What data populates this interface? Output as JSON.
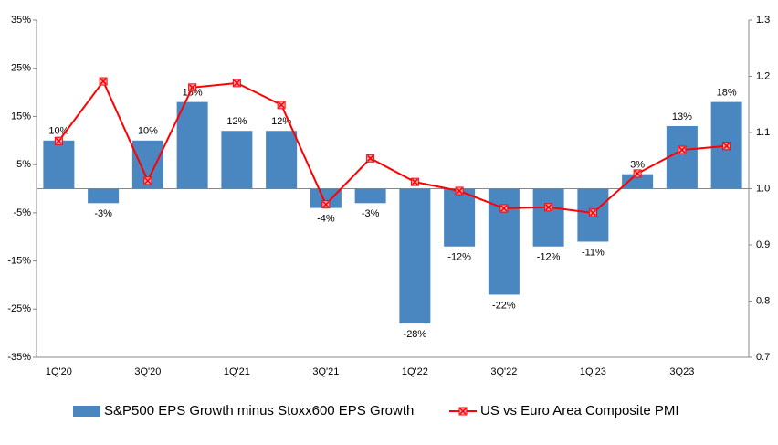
{
  "chart_data": {
    "type": "bar-line",
    "categories": [
      "1Q'20",
      null,
      "3Q'20",
      null,
      "1Q'21",
      null,
      "3Q'21",
      null,
      "1Q'22",
      null,
      "3Q'22",
      null,
      "1Q'23",
      null,
      "3Q23",
      null
    ],
    "series": [
      {
        "name": "S&P500 EPS Growth minus Stoxx600 EPS Growth",
        "type": "bar",
        "color": "#4a86c0",
        "values": [
          10,
          -3,
          10,
          18,
          12,
          12,
          -4,
          -3,
          -28,
          -12,
          -22,
          -12,
          -11,
          3,
          13,
          18
        ],
        "value_labels": [
          "10%",
          "-3%",
          "10%",
          "18%",
          "12%",
          "12%",
          "-4%",
          "-3%",
          "-28%",
          "-12%",
          "-22%",
          "-12%",
          "-11%",
          "3%",
          "13%",
          "18%"
        ]
      },
      {
        "name": "US vs Euro Area Composite PMI",
        "type": "line",
        "axis": "y2",
        "color": "#ff0000",
        "values": [
          1.085,
          1.191,
          1.014,
          1.18,
          1.188,
          1.149,
          0.972,
          1.054,
          1.012,
          0.996,
          0.965,
          0.967,
          0.957,
          1.027,
          1.069,
          1.076
        ]
      }
    ],
    "ylim": [
      -35,
      35
    ],
    "yticks": [
      {
        "value": 35,
        "label": "35%"
      },
      {
        "value": 25,
        "label": "25%"
      },
      {
        "value": 15,
        "label": "15%"
      },
      {
        "value": 5,
        "label": "5%"
      },
      {
        "value": -5,
        "label": "-5%"
      },
      {
        "value": -15,
        "label": "-15%"
      },
      {
        "value": -25,
        "label": "-25%"
      },
      {
        "value": -35,
        "label": "-35%"
      }
    ],
    "y2lim": [
      0.7,
      1.3
    ],
    "y2ticks": [
      0.7,
      0.8,
      0.9,
      {
        "value": 1,
        "label": "1.0"
      },
      1.1,
      1.2,
      1.3
    ],
    "legend": "bottom"
  }
}
